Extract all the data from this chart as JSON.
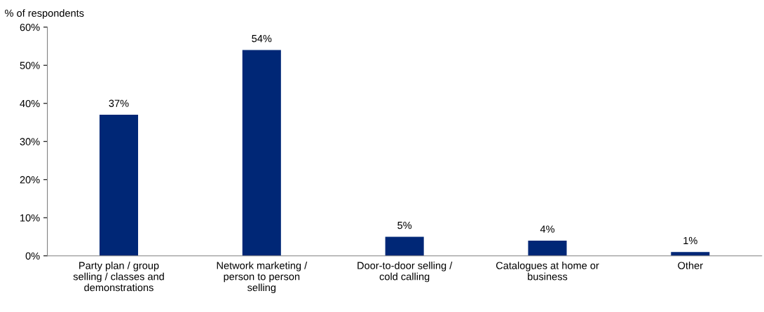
{
  "chart_data": {
    "type": "bar",
    "ylabel": "% of respondents",
    "categories": [
      "Party plan / group selling / classes and demonstrations",
      "Network marketing / person to person selling",
      "Door-to-door selling / cold calling",
      "Catalogues at home or business",
      "Other"
    ],
    "values": [
      37,
      54,
      5,
      4,
      1
    ],
    "value_labels": [
      "37%",
      "54%",
      "5%",
      "4%",
      "1%"
    ],
    "color": "#002776",
    "ylim": [
      0,
      60
    ],
    "yticks": [
      {
        "value": 0,
        "label": "0%"
      },
      {
        "value": 10,
        "label": "10%"
      },
      {
        "value": 20,
        "label": "20%"
      },
      {
        "value": 30,
        "label": "30%"
      },
      {
        "value": 40,
        "label": "40%"
      },
      {
        "value": 50,
        "label": "50%"
      },
      {
        "value": 60,
        "label": "60%"
      }
    ],
    "grid": false,
    "legend": false
  }
}
